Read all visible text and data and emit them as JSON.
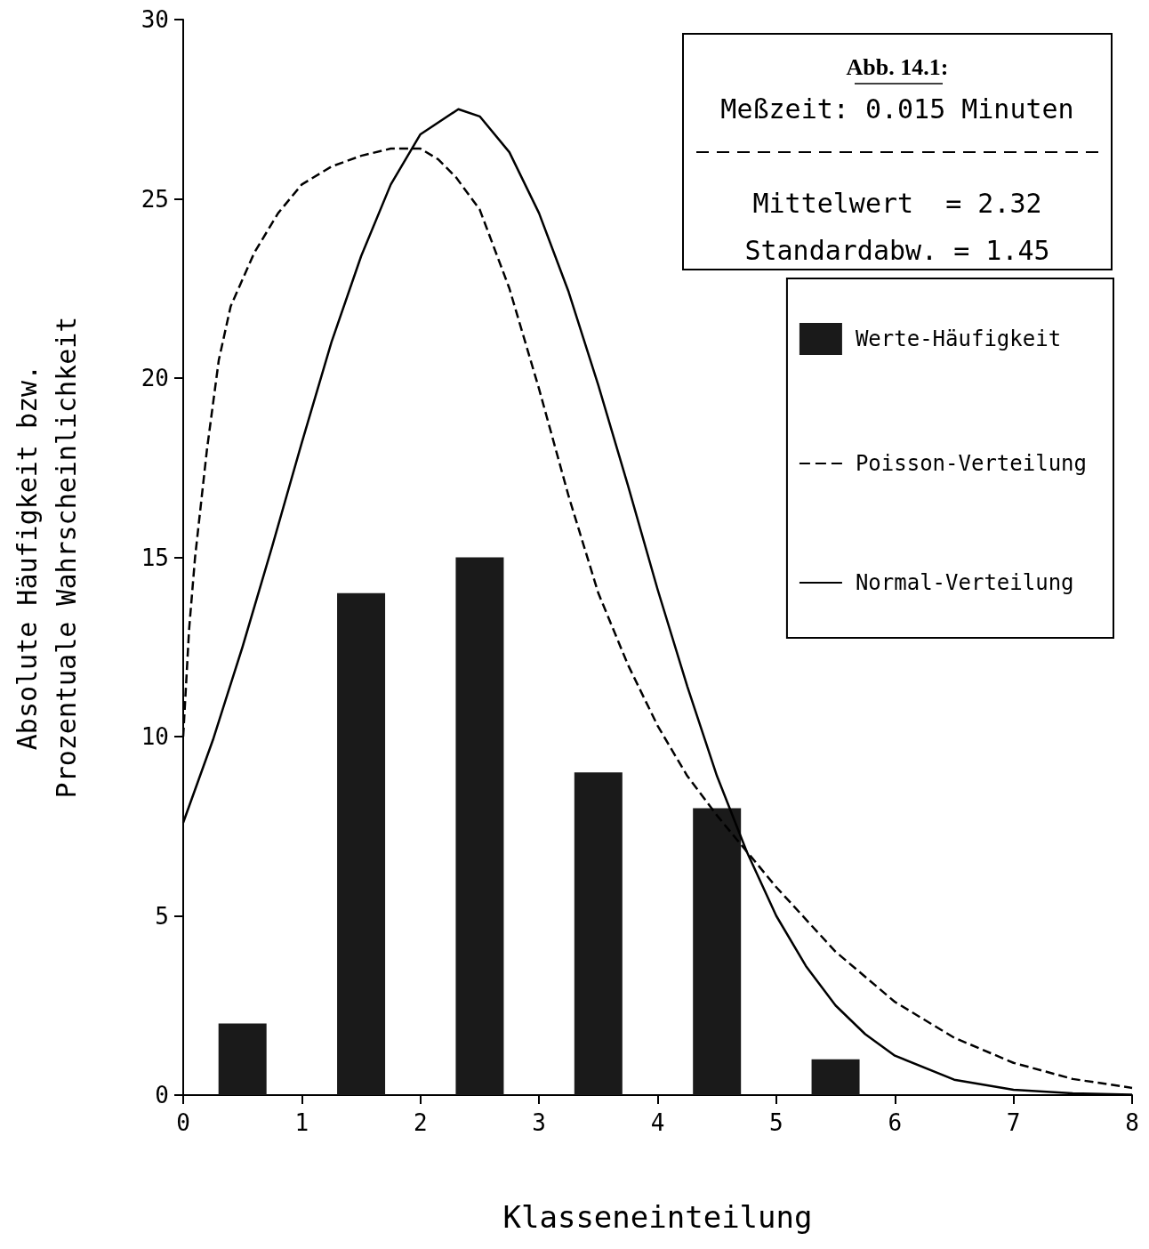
{
  "chart_data": {
    "type": "bar",
    "xlabel": "Klasseneinteilung",
    "ylabel": "Absolute Häufigkeit bzw.\nProzentuale Wahrscheinlichkeit",
    "annotations": [
      "Abb. 14.1:",
      "Meßzeit: 0.015 Minuten",
      "Mittelwert  = 2.32",
      "Standardabw. = 1.45"
    ],
    "xlim": [
      0,
      8
    ],
    "xticks": [
      0,
      1,
      2,
      3,
      4,
      5,
      6,
      7,
      8
    ],
    "ylim": [
      0,
      30
    ],
    "yticks": [
      0,
      5,
      10,
      15,
      20,
      25,
      30
    ],
    "grid": false,
    "legend": "top right",
    "series": [
      {
        "name": "Werte-Häufigkeit",
        "color": "#1a1a1a",
        "x": [
          0.5,
          1.5,
          2.5,
          3.5,
          4.5,
          5.5
        ],
        "values": [
          2,
          14,
          15,
          9,
          8,
          1
        ]
      },
      {
        "type": "line",
        "name": "Poisson-Verteilung",
        "color": "#000000",
        "line_style": "dashed",
        "x": [
          0,
          0.05,
          0.1,
          0.2,
          0.3,
          0.4,
          0.6,
          0.8,
          1,
          1.25,
          1.5,
          1.75,
          2,
          2.15,
          2.3,
          2.5,
          2.75,
          3,
          3.25,
          3.5,
          3.75,
          4,
          4.25,
          4.5,
          4.75,
          5,
          5.5,
          6,
          6.5,
          7,
          7.5,
          8
        ],
        "values": [
          10,
          13,
          15,
          18,
          20.5,
          22,
          23.5,
          24.6,
          25.4,
          25.9,
          26.2,
          26.4,
          26.4,
          26.1,
          25.6,
          24.7,
          22.5,
          19.7,
          16.7,
          14,
          12,
          10.3,
          8.9,
          7.8,
          6.8,
          5.8,
          4,
          2.6,
          1.6,
          0.9,
          0.45,
          0.2
        ]
      },
      {
        "type": "line",
        "name": "Normal-Verteilung",
        "color": "#000000",
        "line_style": "solid",
        "x": [
          0,
          0.25,
          0.5,
          0.75,
          1,
          1.25,
          1.5,
          1.75,
          2,
          2.32,
          2.5,
          2.75,
          3,
          3.25,
          3.5,
          3.75,
          4,
          4.25,
          4.5,
          4.75,
          5,
          5.25,
          5.5,
          5.75,
          6,
          6.5,
          7,
          7.5,
          8
        ],
        "values": [
          7.6,
          9.9,
          12.5,
          15.3,
          18.2,
          21,
          23.4,
          25.4,
          26.8,
          27.5,
          27.3,
          26.3,
          24.6,
          22.4,
          19.8,
          17,
          14.1,
          11.4,
          8.9,
          6.8,
          5,
          3.6,
          2.5,
          1.7,
          1.1,
          0.43,
          0.15,
          0.05,
          0.01
        ]
      }
    ]
  }
}
